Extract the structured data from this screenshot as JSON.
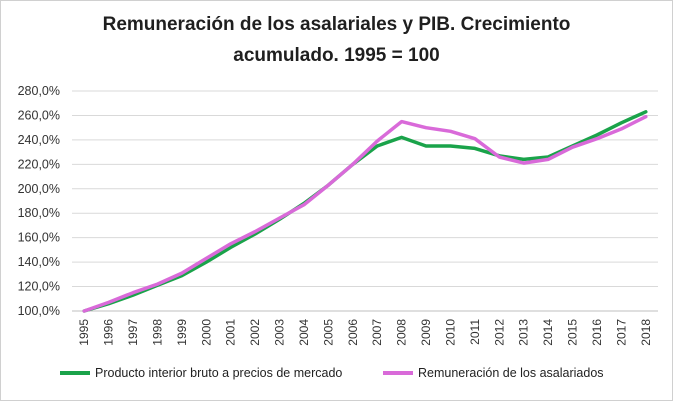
{
  "chart_data": {
    "type": "line",
    "title_line1": "Remuneración de los asalariales y PIB. Crecimiento",
    "title_line2": "acumulado.  1995 = 100",
    "xlabel": "",
    "ylabel": "",
    "ylim": [
      100,
      280
    ],
    "y_ticks": [
      "100,0%",
      "120,0%",
      "140,0%",
      "160,0%",
      "180,0%",
      "200,0%",
      "220,0%",
      "240,0%",
      "260,0%",
      "280,0%"
    ],
    "grid": true,
    "legend_position": "bottom",
    "x": [
      "1995",
      "1996",
      "1997",
      "1998",
      "1999",
      "2000",
      "2001",
      "2002",
      "2003",
      "2004",
      "2005",
      "2006",
      "2007",
      "2008",
      "2009",
      "2010",
      "2011",
      "2012",
      "2013",
      "2014",
      "2015",
      "2016",
      "2017",
      "2018"
    ],
    "series": [
      {
        "name": "Producto interior bruto a precios de mercado",
        "color": "#1aa34a",
        "values": [
          100,
          106,
          113,
          121,
          129,
          140,
          152,
          163,
          175,
          188,
          203,
          220,
          235,
          242,
          235,
          235,
          233,
          227,
          224,
          226,
          235,
          244,
          254,
          263
        ]
      },
      {
        "name": "Remuneración de los asalariados",
        "color": "#d96ad9",
        "values": [
          100,
          107,
          115,
          122,
          131,
          143,
          155,
          165,
          176,
          187,
          203,
          220,
          239,
          255,
          250,
          247,
          241,
          226,
          221,
          224,
          234,
          241,
          249,
          259
        ]
      }
    ]
  }
}
